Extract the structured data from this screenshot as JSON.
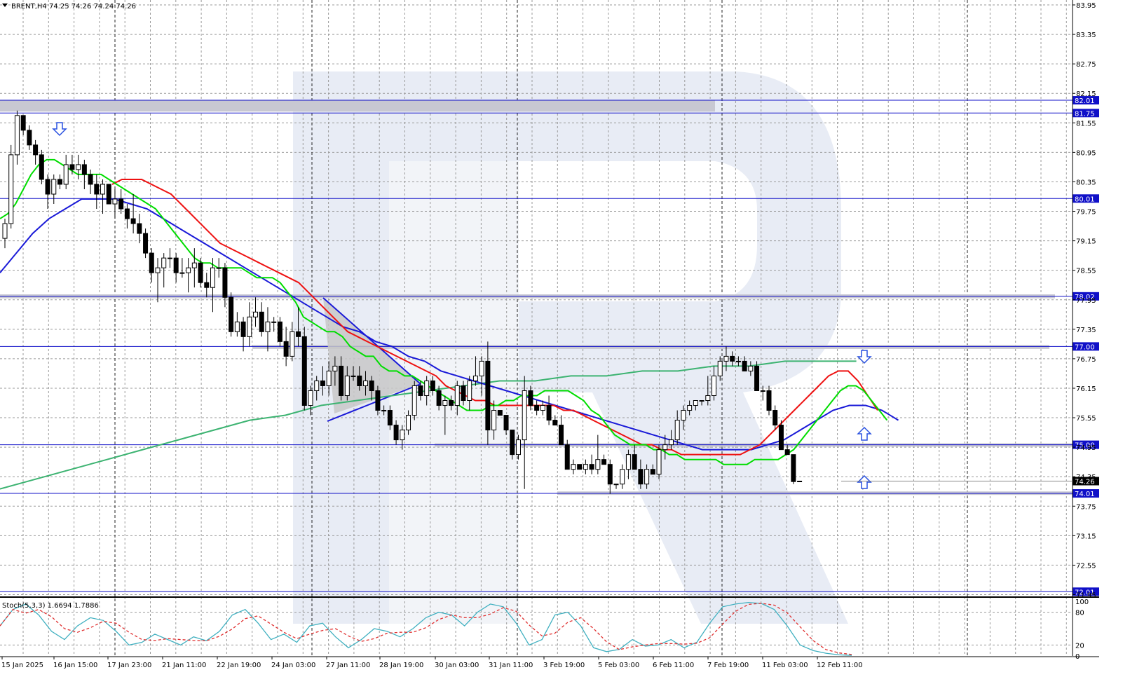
{
  "header": {
    "symbol_line": "BRENT,H4  74.25 74.26 74.24 74.26"
  },
  "colors": {
    "level_line": "#1010c8",
    "zone": "#c8c8d2",
    "ma_fast": "#00dd00",
    "ma_mid": "#ee1111",
    "ma_slow": "#1a1ad8",
    "ma_long": "#3cb371",
    "stoch_main": "#40b0c0",
    "stoch_signal": "#e03030",
    "arrow": "#2850e0",
    "triangle_fill": "#c8c8c8",
    "triangle_stroke": "#1a1ad8"
  },
  "price_axis": {
    "ticks": [
      "83.95",
      "83.35",
      "82.75",
      "82.15",
      "81.55",
      "80.95",
      "80.35",
      "79.75",
      "79.15",
      "78.55",
      "77.95",
      "77.35",
      "76.75",
      "76.15",
      "75.55",
      "74.95",
      "74.35",
      "73.75",
      "73.15",
      "72.55",
      "71.95"
    ],
    "current_price": "74.26"
  },
  "levels": [
    {
      "label": "82.01",
      "price": 82.01
    },
    {
      "label": "81.75",
      "price": 81.75
    },
    {
      "label": "80.01",
      "price": 80.01
    },
    {
      "label": "78.02",
      "price": 78.02
    },
    {
      "label": "77.00",
      "price": 77.0
    },
    {
      "label": "75.00",
      "price": 75.0
    },
    {
      "label": "74.01",
      "price": 74.01
    },
    {
      "label": "72.01",
      "price": 72.01
    }
  ],
  "time_axis": {
    "labels": [
      "15 Jan 2025",
      "16 Jan 15:00",
      "17 Jan 23:00",
      "21 Jan 11:00",
      "22 Jan 19:00",
      "24 Jan 03:00",
      "27 Jan 11:00",
      "28 Jan 19:00",
      "30 Jan 03:00",
      "31 Jan 11:00",
      "3 Feb 19:00",
      "5 Feb 03:00",
      "6 Feb 11:00",
      "7 Feb 19:00",
      "11 Feb 03:00",
      "12 Feb 11:00"
    ]
  },
  "stoch": {
    "header": "Stoch(5,3,3) 1.6694 1.7886",
    "levels": [
      "100",
      "80",
      "20",
      "0"
    ]
  },
  "chart_data": {
    "type": "candlestick",
    "title": "BRENT,H4",
    "ohlc_last": {
      "open": 74.25,
      "high": 74.26,
      "low": 74.24,
      "close": 74.26
    },
    "ylim": [
      71.9,
      84.05
    ],
    "candles": [
      [
        79.2,
        79.6,
        79.0,
        79.5
      ],
      [
        79.5,
        81.1,
        79.4,
        80.9
      ],
      [
        80.9,
        81.8,
        80.7,
        81.7
      ],
      [
        81.7,
        81.7,
        81.3,
        81.4
      ],
      [
        81.4,
        81.5,
        81.0,
        81.1
      ],
      [
        81.1,
        81.2,
        80.7,
        80.9
      ],
      [
        80.9,
        81.0,
        80.3,
        80.4
      ],
      [
        80.4,
        80.5,
        79.8,
        80.1
      ],
      [
        80.1,
        80.5,
        79.9,
        80.4
      ],
      [
        80.4,
        80.5,
        80.2,
        80.3
      ],
      [
        80.3,
        80.9,
        80.2,
        80.7
      ],
      [
        80.7,
        80.9,
        80.5,
        80.6
      ],
      [
        80.6,
        80.9,
        80.4,
        80.7
      ],
      [
        80.7,
        80.8,
        80.2,
        80.5
      ],
      [
        80.5,
        80.6,
        80.1,
        80.3
      ],
      [
        80.3,
        80.5,
        79.8,
        80.1
      ],
      [
        80.1,
        80.4,
        79.7,
        80.3
      ],
      [
        80.3,
        80.3,
        79.9,
        79.9
      ],
      [
        79.9,
        80.2,
        79.6,
        80.0
      ],
      [
        80.0,
        80.2,
        79.7,
        79.8
      ],
      [
        79.8,
        79.9,
        79.4,
        79.6
      ],
      [
        79.6,
        80.1,
        79.3,
        79.5
      ],
      [
        79.5,
        79.7,
        79.1,
        79.3
      ],
      [
        79.3,
        79.4,
        78.8,
        78.9
      ],
      [
        78.9,
        79.0,
        78.3,
        78.5
      ],
      [
        78.5,
        78.8,
        77.9,
        78.6
      ],
      [
        78.6,
        78.9,
        78.2,
        78.8
      ],
      [
        78.8,
        79.0,
        78.6,
        78.8
      ],
      [
        78.8,
        78.9,
        78.3,
        78.5
      ],
      [
        78.5,
        78.8,
        78.4,
        78.5
      ],
      [
        78.5,
        78.8,
        78.1,
        78.6
      ],
      [
        78.6,
        79.0,
        78.2,
        78.7
      ],
      [
        78.7,
        78.8,
        78.2,
        78.3
      ],
      [
        78.3,
        78.5,
        78.0,
        78.2
      ],
      [
        78.2,
        78.8,
        77.7,
        78.6
      ],
      [
        78.6,
        78.8,
        78.4,
        78.6
      ],
      [
        78.6,
        78.7,
        77.8,
        78.0
      ],
      [
        78.0,
        78.1,
        77.2,
        77.3
      ],
      [
        77.3,
        77.7,
        77.2,
        77.5
      ],
      [
        77.5,
        77.6,
        76.9,
        77.2
      ],
      [
        77.2,
        77.9,
        77.0,
        77.6
      ],
      [
        77.6,
        78.0,
        77.4,
        77.7
      ],
      [
        77.7,
        77.9,
        77.2,
        77.3
      ],
      [
        77.3,
        77.8,
        76.9,
        77.5
      ],
      [
        77.5,
        77.6,
        77.3,
        77.5
      ],
      [
        77.5,
        77.6,
        77.0,
        77.1
      ],
      [
        77.1,
        77.4,
        76.6,
        76.8
      ],
      [
        76.8,
        77.5,
        76.7,
        77.3
      ],
      [
        77.3,
        77.8,
        77.0,
        77.2
      ],
      [
        77.2,
        77.4,
        75.7,
        75.8
      ],
      [
        75.8,
        76.2,
        75.6,
        76.1
      ],
      [
        76.1,
        76.4,
        75.9,
        76.3
      ],
      [
        76.3,
        76.6,
        76.0,
        76.2
      ],
      [
        76.2,
        76.7,
        76.0,
        76.5
      ],
      [
        76.5,
        76.8,
        76.2,
        76.6
      ],
      [
        76.6,
        76.8,
        75.9,
        76.0
      ],
      [
        76.0,
        76.6,
        75.9,
        76.4
      ],
      [
        76.4,
        76.6,
        76.3,
        76.4
      ],
      [
        76.4,
        76.6,
        76.1,
        76.2
      ],
      [
        76.2,
        76.5,
        76.0,
        76.3
      ],
      [
        76.3,
        76.4,
        75.9,
        76.1
      ],
      [
        76.1,
        76.2,
        75.6,
        75.7
      ],
      [
        75.7,
        75.8,
        75.6,
        75.7
      ],
      [
        75.7,
        75.8,
        75.3,
        75.4
      ],
      [
        75.4,
        75.5,
        75.0,
        75.1
      ],
      [
        75.1,
        75.4,
        74.9,
        75.3
      ],
      [
        75.3,
        75.7,
        75.2,
        75.6
      ],
      [
        75.6,
        76.3,
        75.5,
        76.2
      ],
      [
        76.2,
        76.3,
        75.9,
        76.0
      ],
      [
        76.0,
        76.4,
        75.8,
        76.3
      ],
      [
        76.3,
        76.4,
        76.0,
        76.1
      ],
      [
        76.1,
        76.2,
        75.7,
        75.8
      ],
      [
        75.8,
        76.0,
        75.2,
        75.9
      ],
      [
        75.9,
        76.0,
        75.7,
        75.8
      ],
      [
        75.8,
        76.3,
        75.6,
        76.2
      ],
      [
        76.2,
        76.3,
        75.8,
        75.9
      ],
      [
        75.9,
        76.4,
        75.7,
        76.3
      ],
      [
        76.3,
        76.8,
        76.2,
        76.4
      ],
      [
        76.4,
        76.8,
        76.0,
        76.7
      ],
      [
        76.7,
        77.1,
        75.0,
        75.3
      ],
      [
        75.3,
        75.9,
        75.1,
        75.7
      ],
      [
        75.7,
        75.7,
        75.6,
        75.6
      ],
      [
        75.6,
        75.6,
        75.2,
        75.3
      ],
      [
        75.3,
        75.3,
        74.7,
        74.8
      ],
      [
        74.8,
        75.2,
        74.7,
        75.1
      ],
      [
        75.1,
        76.4,
        74.1,
        76.1
      ],
      [
        76.1,
        76.2,
        75.7,
        75.8
      ],
      [
        75.8,
        75.9,
        75.6,
        75.7
      ],
      [
        75.7,
        75.9,
        75.6,
        75.8
      ],
      [
        75.8,
        76.0,
        75.4,
        75.5
      ],
      [
        75.5,
        75.6,
        75.4,
        75.4
      ],
      [
        75.4,
        75.6,
        75.0,
        75.0
      ],
      [
        75.0,
        75.1,
        74.5,
        74.5
      ],
      [
        74.5,
        74.7,
        74.4,
        74.6
      ],
      [
        74.6,
        74.6,
        74.5,
        74.5
      ],
      [
        74.5,
        74.7,
        74.4,
        74.6
      ],
      [
        74.6,
        74.8,
        74.4,
        74.5
      ],
      [
        74.5,
        75.2,
        74.4,
        74.7
      ],
      [
        74.7,
        74.8,
        74.6,
        74.6
      ],
      [
        74.6,
        74.7,
        74.0,
        74.2
      ],
      [
        74.2,
        74.2,
        74.1,
        74.2
      ],
      [
        74.2,
        74.6,
        74.1,
        74.5
      ],
      [
        74.5,
        74.9,
        74.3,
        74.8
      ],
      [
        74.8,
        75.0,
        74.6,
        74.5
      ],
      [
        74.5,
        74.7,
        74.1,
        74.2
      ],
      [
        74.2,
        74.6,
        74.1,
        74.5
      ],
      [
        74.5,
        74.6,
        74.4,
        74.4
      ],
      [
        74.4,
        75.0,
        74.3,
        74.9
      ],
      [
        74.9,
        75.2,
        74.7,
        75.0
      ],
      [
        75.0,
        75.3,
        74.9,
        75.1
      ],
      [
        75.1,
        75.7,
        75.0,
        75.5
      ],
      [
        75.5,
        75.8,
        75.3,
        75.7
      ],
      [
        75.7,
        75.9,
        75.6,
        75.8
      ],
      [
        75.8,
        75.9,
        75.7,
        75.9
      ],
      [
        75.9,
        75.9,
        75.8,
        75.9
      ],
      [
        75.9,
        76.4,
        75.8,
        76.0
      ],
      [
        76.0,
        76.6,
        75.9,
        76.4
      ],
      [
        76.4,
        76.8,
        76.3,
        76.7
      ],
      [
        76.7,
        77.0,
        76.5,
        76.8
      ],
      [
        76.8,
        76.9,
        76.6,
        76.7
      ],
      [
        76.7,
        76.8,
        76.6,
        76.7
      ],
      [
        76.7,
        76.8,
        76.5,
        76.5
      ],
      [
        76.5,
        76.7,
        76.4,
        76.6
      ],
      [
        76.6,
        76.7,
        76.1,
        76.1
      ],
      [
        76.1,
        76.2,
        75.9,
        76.1
      ],
      [
        76.1,
        76.2,
        75.6,
        75.7
      ],
      [
        75.7,
        75.8,
        75.3,
        75.4
      ],
      [
        75.4,
        75.5,
        74.9,
        74.9
      ],
      [
        74.9,
        75.0,
        74.8,
        74.8
      ],
      [
        74.8,
        74.8,
        74.2,
        74.25
      ],
      [
        74.25,
        74.26,
        74.24,
        74.26
      ]
    ],
    "ma_fast": [
      79.6,
      79.7,
      79.9,
      80.2,
      80.5,
      80.7,
      80.8,
      80.8,
      80.7,
      80.6,
      80.5,
      80.5,
      80.5,
      80.5,
      80.4,
      80.3,
      80.2,
      80.1,
      80.0,
      79.9,
      79.8,
      79.6,
      79.4,
      79.2,
      79.0,
      78.8,
      78.7,
      78.7,
      78.6,
      78.6,
      78.6,
      78.6,
      78.5,
      78.4,
      78.4,
      78.4,
      78.3,
      78.1,
      77.9,
      77.6,
      77.5,
      77.4,
      77.3,
      77.3,
      77.2,
      77.0,
      76.9,
      76.8,
      76.8,
      76.6,
      76.5,
      76.5,
      76.4,
      76.4,
      76.3,
      76.2,
      76.1,
      76.0,
      75.9,
      75.8,
      75.7,
      75.7,
      75.7,
      75.8,
      75.8,
      75.9,
      75.9,
      76.0,
      76.0,
      76.0,
      76.1,
      76.1,
      76.1,
      76.1,
      76.0,
      75.9,
      75.7,
      75.6,
      75.4,
      75.2,
      75.1,
      75.0,
      75.0,
      75.0,
      74.9,
      74.9,
      74.8,
      74.8,
      74.7,
      74.7,
      74.7,
      74.7,
      74.7,
      74.6,
      74.6,
      74.6,
      74.6,
      74.7,
      74.7,
      74.7,
      74.7,
      74.8,
      74.9,
      75.1,
      75.3,
      75.5,
      75.7,
      75.9,
      76.1,
      76.2,
      76.2,
      76.1,
      75.9,
      75.7,
      75.5
    ],
    "ma_mid": [
      80.3,
      80.4,
      80.4,
      80.4,
      80.3,
      80.2,
      80.1,
      79.9,
      79.7,
      79.5,
      79.3,
      79.1,
      79.0,
      78.9,
      78.8,
      78.7,
      78.6,
      78.5,
      78.4,
      78.3,
      78.1,
      77.9,
      77.7,
      77.5,
      77.3,
      77.2,
      77.1,
      77.0,
      76.9,
      76.8,
      76.7,
      76.6,
      76.5,
      76.4,
      76.2,
      76.1,
      76.0,
      75.9,
      75.9,
      75.8,
      75.8,
      75.8,
      75.8,
      75.8,
      75.8,
      75.8,
      75.7,
      75.7,
      75.6,
      75.5,
      75.4,
      75.3,
      75.2,
      75.1,
      75.0,
      75.0,
      74.9,
      74.9,
      74.8,
      74.8,
      74.8,
      74.8,
      74.8,
      74.8,
      74.8,
      74.9,
      75.0,
      75.2,
      75.4,
      75.6,
      75.8,
      76.0,
      76.2,
      76.4,
      76.5,
      76.5,
      76.3,
      76.0,
      75.7
    ],
    "ma_slow": [
      78.5,
      78.9,
      79.3,
      79.6,
      79.8,
      80.0,
      80.0,
      80.0,
      79.9,
      79.8,
      79.6,
      79.4,
      79.2,
      79.0,
      78.8,
      78.6,
      78.4,
      78.2,
      78.0,
      77.8,
      77.6,
      77.4,
      77.3,
      77.1,
      77.0,
      76.8,
      76.7,
      76.5,
      76.4,
      76.3,
      76.2,
      76.1,
      76.0,
      75.9,
      75.8,
      75.7,
      75.6,
      75.5,
      75.4,
      75.3,
      75.2,
      75.1,
      75.0,
      74.9,
      74.9,
      74.9,
      74.9,
      75.0,
      75.1,
      75.3,
      75.5,
      75.7,
      75.8,
      75.8,
      75.7,
      75.5
    ],
    "ma_long": [
      74.1,
      74.3,
      74.5,
      74.7,
      74.9,
      75.1,
      75.3,
      75.5,
      75.6,
      75.8,
      75.9,
      76.0,
      76.1,
      76.2,
      76.3,
      76.3,
      76.4,
      76.4,
      76.5,
      76.5,
      76.6,
      76.6,
      76.7,
      76.7,
      76.7
    ]
  }
}
